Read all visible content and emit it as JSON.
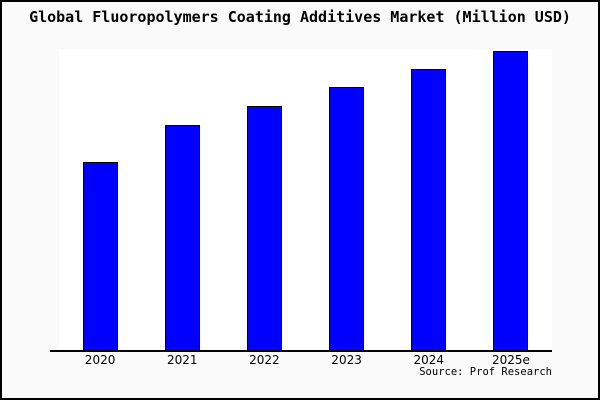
{
  "title": "Global Fluoropolymers Coating Additives Market (Million USD)",
  "source": "Source: Prof Research",
  "colors": {
    "bar_fill": "#0000fe",
    "bar_border": "#000000",
    "background": "#fafafa",
    "plot_background": "#ffffff",
    "axis": "#000000",
    "text": "#000000"
  },
  "chart_data": {
    "type": "bar",
    "categories": [
      "2020",
      "2021",
      "2022",
      "2023",
      "2024",
      "2025e"
    ],
    "values": [
      189,
      226,
      245,
      264,
      282,
      300
    ],
    "title": "Global Fluoropolymers Coating Additives Market (Million USD)",
    "xlabel": "",
    "ylabel": "",
    "ylim": [
      0,
      302
    ],
    "values_unit": "relative (y-axis unlabeled in source image)",
    "grid": false,
    "legend_position": "none",
    "annotations": [
      "Source: Prof Research"
    ]
  }
}
